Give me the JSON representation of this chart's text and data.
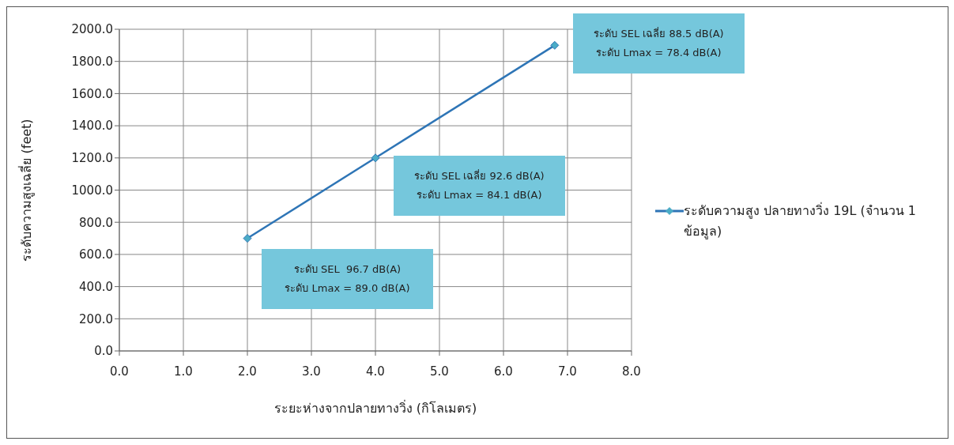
{
  "chart_data": {
    "type": "line",
    "xlabel": "ระยะห่างจากปลายทางวิ่ง (กิโลเมตร)",
    "ylabel": "ระดับความสูงเฉลี่ย (feet)",
    "x": [
      2.0,
      4.0,
      6.8
    ],
    "series": [
      {
        "name": "ระดับความสูง ปลายทางวิ่ง 19L (จำนวน 1 ข้อมูล)",
        "color": "#2e75b6",
        "values": [
          700,
          1200,
          1900
        ]
      }
    ],
    "xlim": [
      0,
      8
    ],
    "xticks": [
      {
        "value": 0,
        "label": "0.0"
      },
      {
        "value": 1,
        "label": "1.0"
      },
      {
        "value": 2,
        "label": "2.0"
      },
      {
        "value": 3,
        "label": "3.0"
      },
      {
        "value": 4,
        "label": "4.0"
      },
      {
        "value": 5,
        "label": "5.0"
      },
      {
        "value": 6,
        "label": "6.0"
      },
      {
        "value": 7,
        "label": "7.0"
      },
      {
        "value": 8,
        "label": "8.0"
      }
    ],
    "ylim": [
      0,
      2000
    ],
    "yticks": [
      {
        "value": 0,
        "label": "0.0"
      },
      {
        "value": 200,
        "label": "200.0"
      },
      {
        "value": 400,
        "label": "400.0"
      },
      {
        "value": 600,
        "label": "600.0"
      },
      {
        "value": 800,
        "label": "800.0"
      },
      {
        "value": 1000,
        "label": "1000.0"
      },
      {
        "value": 1200,
        "label": "1200.0"
      },
      {
        "value": 1400,
        "label": "1400.0"
      },
      {
        "value": 1600,
        "label": "1600.0"
      },
      {
        "value": 1800,
        "label": "1800.0"
      },
      {
        "value": 2000,
        "label": "2000.0"
      }
    ],
    "annotations": [
      "ระดับ SEL  96.7 dB(A)\nระดับ Lmax = 89.0 dB(A)",
      "ระดับ SEL เฉลี่ย 92.6 dB(A)\nระดับ Lmax = 84.1 dB(A)",
      "ระดับ SEL เฉลี่ย 88.5 dB(A)\nระดับ Lmax = 78.4 dB(A)"
    ],
    "grid": true,
    "legend": "right",
    "marker": "diamond",
    "line_style": "solid"
  }
}
